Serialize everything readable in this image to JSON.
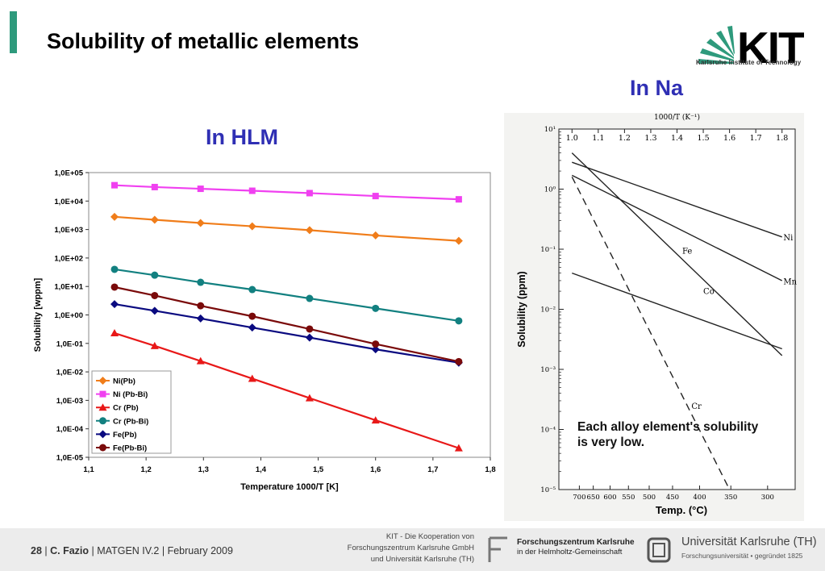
{
  "slide": {
    "title": "Solubility of metallic elements",
    "heading_hlm": "In HLM",
    "heading_na": "In Na",
    "note_line1": "Each alloy element's solubility",
    "note_line2": "is very low."
  },
  "logo": {
    "text": "KIT",
    "subtitle": "Karlsruhe Institute of Technology"
  },
  "footer": {
    "page": "28",
    "author": "C. Fazio",
    "event": "MATGEN IV.2",
    "date": "February 2009",
    "coop_line1": "KIT - Die Kooperation von",
    "coop_line2": "Forschungszentrum Karlsruhe GmbH",
    "coop_line3": "und Universität Karlsruhe (TH)",
    "fzk_name": "Forschungszentrum Karlsruhe",
    "fzk_sub": "in der Helmholtz-Gemeinschaft",
    "uni_name": "Universität Karlsruhe (TH)",
    "uni_sub": "Forschungsuniversität • gegründet 1825"
  },
  "colors": {
    "accent": "#2e9a7c",
    "heading": "#2f2fb4"
  },
  "chart_data": [
    {
      "type": "line",
      "xlabel": "Temperature 1000/T [K]",
      "ylabel": "Solubility [wppm]",
      "xlim": [
        1.1,
        1.8
      ],
      "ylim": [
        1e-05,
        100000
      ],
      "yscale": "log",
      "grid": false,
      "legend": "bottom-left",
      "x_ticks": [
        "1,1",
        "1,2",
        "1,3",
        "1,4",
        "1,5",
        "1,6",
        "1,7",
        "1,8"
      ],
      "y_ticks": [
        "1,0E-05",
        "1,0E-04",
        "1,0E-03",
        "1,0E-02",
        "1,0E-01",
        "1,0E+00",
        "1,0E+01",
        "1,0E+02",
        "1,0E+03",
        "1,0E+04",
        "1,0E+05"
      ],
      "x": [
        1.145,
        1.215,
        1.295,
        1.385,
        1.485,
        1.6,
        1.745
      ],
      "series": [
        {
          "name": "Ni(Pb)",
          "color": "#f07d1a",
          "marker": "diamond",
          "values": [
            2800,
            2200,
            1700,
            1300,
            950,
            620,
            400
          ]
        },
        {
          "name": "Ni (Pb-Bi)",
          "color": "#f040f0",
          "marker": "square",
          "values": [
            36000,
            31000,
            27000,
            23000,
            19000,
            15000,
            11500
          ]
        },
        {
          "name": "Cr (Pb)",
          "color": "#e81818",
          "marker": "triangle",
          "values": [
            0.23,
            0.082,
            0.024,
            0.0058,
            0.0012,
            0.0002,
            2.1e-05
          ]
        },
        {
          "name": "Cr (Pb-Bi)",
          "color": "#128080",
          "marker": "circle",
          "values": [
            40,
            25,
            14,
            7.8,
            3.8,
            1.7,
            0.62
          ]
        },
        {
          "name": "Fe(Pb)",
          "color": "#0a0a80",
          "marker": "diamond",
          "values": [
            2.4,
            1.4,
            0.75,
            0.36,
            0.16,
            0.062,
            0.021
          ]
        },
        {
          "name": "Fe(Pb-Bi)",
          "color": "#7a0a0a",
          "marker": "circle",
          "values": [
            9.5,
            4.8,
            2.1,
            0.9,
            0.32,
            0.095,
            0.023
          ]
        }
      ]
    },
    {
      "type": "line",
      "xlabel": "Temp. (°C)",
      "ylabel": "Solubility (ppm)",
      "top_axis_label": "1000/T (K⁻¹)",
      "xlim": [
        0.95,
        1.85
      ],
      "ylim": [
        1e-05,
        10
      ],
      "yscale": "log",
      "grid": false,
      "top_ticks": [
        "1.0",
        "1.1",
        "1.2",
        "1.3",
        "1.4",
        "1.5",
        "1.6",
        "1.7",
        "1.8"
      ],
      "bottom_ticks": [
        {
          "label": "700",
          "x": 1.028
        },
        {
          "label": "650",
          "x": 1.081
        },
        {
          "label": "600",
          "x": 1.145
        },
        {
          "label": "550",
          "x": 1.215
        },
        {
          "label": "500",
          "x": 1.294
        },
        {
          "label": "450",
          "x": 1.383
        },
        {
          "label": "400",
          "x": 1.486
        },
        {
          "label": "350",
          "x": 1.605
        },
        {
          "label": "300",
          "x": 1.745
        }
      ],
      "y_ticks": [
        "10⁻⁵",
        "10⁻⁴",
        "10⁻³",
        "10⁻²",
        "10⁻¹",
        "10⁰",
        "10¹"
      ],
      "series": [
        {
          "name": "Ni",
          "x": [
            1.0,
            1.8
          ],
          "values": [
            2.8,
            0.16
          ]
        },
        {
          "name": "Mn",
          "x": [
            1.0,
            1.8
          ],
          "values": [
            1.7,
            0.03
          ]
        },
        {
          "name": "Fe",
          "x": [
            1.0,
            1.8
          ],
          "values": [
            4.0,
            0.0017
          ]
        },
        {
          "name": "Co",
          "x": [
            1.0,
            1.8
          ],
          "values": [
            0.04,
            0.0022
          ]
        },
        {
          "name": "Cr",
          "x": [
            1.0,
            1.6
          ],
          "values": [
            1.6,
            1e-05
          ],
          "dash": true
        }
      ]
    }
  ]
}
